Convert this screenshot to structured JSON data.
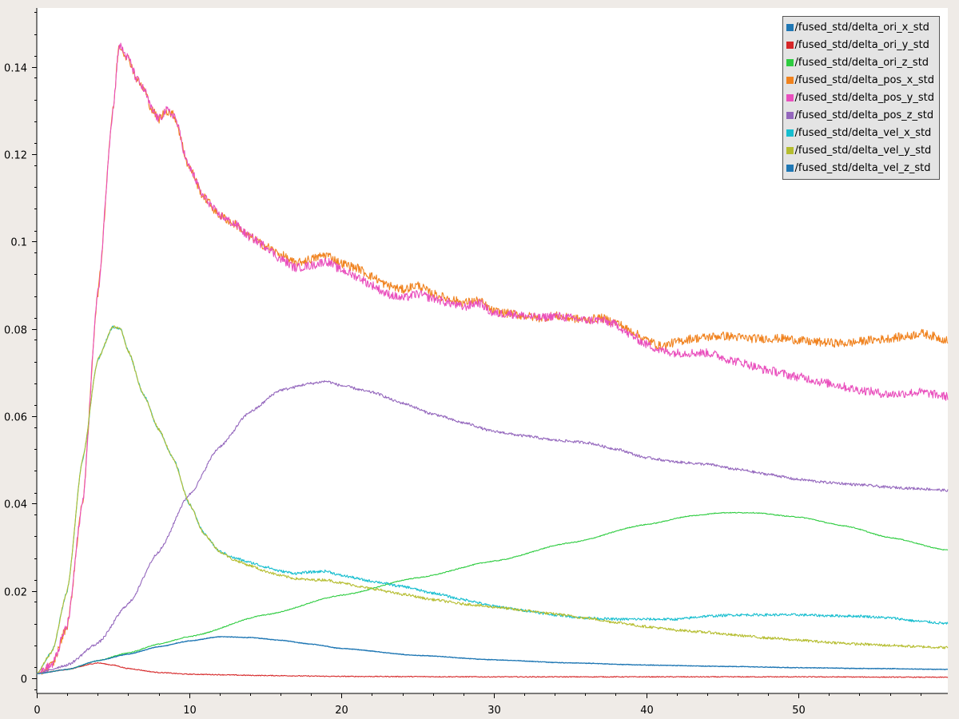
{
  "chart_data": {
    "type": "line",
    "title": "",
    "xlabel": "",
    "ylabel": "",
    "xlim": [
      0,
      59.8
    ],
    "ylim": [
      -0.0035,
      0.1535
    ],
    "x_ticks": [
      0,
      10,
      20,
      30,
      40,
      50
    ],
    "x_tick_labels": [
      "0",
      "10",
      "20",
      "30",
      "40",
      "50"
    ],
    "y_ticks": [
      0,
      0.02,
      0.04,
      0.06,
      0.08,
      0.1,
      0.12,
      0.14
    ],
    "y_tick_labels": [
      "0",
      "0.02",
      "0.04",
      "0.06",
      "0.08",
      "0.1",
      "0.12",
      "0.14"
    ],
    "grid": false,
    "legend_position": "top-right",
    "series": [
      {
        "name": "/fused_std/delta_ori_x_std",
        "color": "#1f77b4",
        "noise": 0.0001,
        "points": [
          [
            0,
            0.001
          ],
          [
            2,
            0.002
          ],
          [
            4,
            0.004
          ],
          [
            6,
            0.0055
          ],
          [
            8,
            0.0072
          ],
          [
            10,
            0.0085
          ],
          [
            12,
            0.0095
          ],
          [
            14,
            0.0093
          ],
          [
            16,
            0.0087
          ],
          [
            18,
            0.0078
          ],
          [
            20,
            0.0068
          ],
          [
            25,
            0.0052
          ],
          [
            30,
            0.0042
          ],
          [
            35,
            0.0035
          ],
          [
            40,
            0.003
          ],
          [
            45,
            0.0027
          ],
          [
            50,
            0.0024
          ],
          [
            55,
            0.0022
          ],
          [
            59.8,
            0.002
          ]
        ]
      },
      {
        "name": "/fused_std/delta_ori_y_std",
        "color": "#d62728",
        "noise": 0.0001,
        "points": [
          [
            0,
            0.001
          ],
          [
            2,
            0.002
          ],
          [
            4,
            0.0035
          ],
          [
            5,
            0.003
          ],
          [
            6,
            0.0022
          ],
          [
            8,
            0.0013
          ],
          [
            10,
            0.0009
          ],
          [
            15,
            0.0006
          ],
          [
            20,
            0.0004
          ],
          [
            30,
            0.0003
          ],
          [
            40,
            0.0003
          ],
          [
            50,
            0.0003
          ],
          [
            59.8,
            0.0002
          ]
        ]
      },
      {
        "name": "/fused_std/delta_ori_z_std",
        "color": "#2ecc40",
        "noise": 0.0001,
        "points": [
          [
            0,
            0.001
          ],
          [
            2,
            0.002
          ],
          [
            4,
            0.004
          ],
          [
            6,
            0.0058
          ],
          [
            8,
            0.0078
          ],
          [
            10,
            0.0095
          ],
          [
            15,
            0.0145
          ],
          [
            20,
            0.019
          ],
          [
            25,
            0.023
          ],
          [
            30,
            0.0268
          ],
          [
            35,
            0.031
          ],
          [
            40,
            0.0352
          ],
          [
            43,
            0.0372
          ],
          [
            45,
            0.0379
          ],
          [
            47,
            0.0379
          ],
          [
            50,
            0.0369
          ],
          [
            53,
            0.0349
          ],
          [
            56,
            0.0322
          ],
          [
            59.8,
            0.0293
          ]
        ]
      },
      {
        "name": "/fused_std/delta_pos_x_std",
        "color": "#f0821e",
        "noise": 0.001,
        "points": [
          [
            0,
            0.001
          ],
          [
            1,
            0.003
          ],
          [
            2,
            0.012
          ],
          [
            3,
            0.04
          ],
          [
            4,
            0.088
          ],
          [
            5,
            0.13
          ],
          [
            5.4,
            0.145
          ],
          [
            6,
            0.142
          ],
          [
            6.6,
            0.137
          ],
          [
            7,
            0.135
          ],
          [
            7.6,
            0.13
          ],
          [
            8,
            0.128
          ],
          [
            8.5,
            0.13
          ],
          [
            9,
            0.129
          ],
          [
            10,
            0.117
          ],
          [
            11,
            0.11
          ],
          [
            12,
            0.106
          ],
          [
            13,
            0.104
          ],
          [
            14,
            0.101
          ],
          [
            15,
            0.099
          ],
          [
            16,
            0.097
          ],
          [
            17,
            0.095
          ],
          [
            18,
            0.096
          ],
          [
            19,
            0.097
          ],
          [
            20,
            0.095
          ],
          [
            21,
            0.094
          ],
          [
            22,
            0.092
          ],
          [
            23,
            0.09
          ],
          [
            24,
            0.089
          ],
          [
            25,
            0.09
          ],
          [
            26,
            0.088
          ],
          [
            27,
            0.087
          ],
          [
            28,
            0.086
          ],
          [
            29,
            0.0865
          ],
          [
            30,
            0.084
          ],
          [
            31,
            0.0835
          ],
          [
            32,
            0.083
          ],
          [
            33,
            0.0825
          ],
          [
            34,
            0.083
          ],
          [
            35,
            0.0825
          ],
          [
            36,
            0.082
          ],
          [
            37,
            0.0825
          ],
          [
            38,
            0.0815
          ],
          [
            39,
            0.0795
          ],
          [
            40,
            0.0775
          ],
          [
            41,
            0.076
          ],
          [
            42,
            0.077
          ],
          [
            43,
            0.0778
          ],
          [
            45,
            0.0784
          ],
          [
            47,
            0.0778
          ],
          [
            49,
            0.0778
          ],
          [
            51,
            0.077
          ],
          [
            53,
            0.0767
          ],
          [
            55,
            0.0775
          ],
          [
            57,
            0.0782
          ],
          [
            58,
            0.079
          ],
          [
            59.8,
            0.0775
          ]
        ]
      },
      {
        "name": "/fused_std/delta_pos_y_std",
        "color": "#e94fbd",
        "noise": 0.001,
        "points": [
          [
            0,
            0.001
          ],
          [
            1,
            0.003
          ],
          [
            2,
            0.012
          ],
          [
            3,
            0.04
          ],
          [
            4,
            0.088
          ],
          [
            5,
            0.13
          ],
          [
            5.4,
            0.145
          ],
          [
            6,
            0.142
          ],
          [
            6.6,
            0.137
          ],
          [
            7,
            0.135
          ],
          [
            7.6,
            0.13
          ],
          [
            8,
            0.128
          ],
          [
            8.5,
            0.13
          ],
          [
            9,
            0.129
          ],
          [
            10,
            0.117
          ],
          [
            11,
            0.11
          ],
          [
            12,
            0.106
          ],
          [
            13,
            0.104
          ],
          [
            14,
            0.101
          ],
          [
            15,
            0.099
          ],
          [
            16,
            0.096
          ],
          [
            17,
            0.094
          ],
          [
            18,
            0.0945
          ],
          [
            19,
            0.0955
          ],
          [
            20,
            0.0935
          ],
          [
            21,
            0.092
          ],
          [
            22,
            0.09
          ],
          [
            23,
            0.088
          ],
          [
            24,
            0.087
          ],
          [
            25,
            0.088
          ],
          [
            26,
            0.087
          ],
          [
            27,
            0.086
          ],
          [
            28,
            0.085
          ],
          [
            29,
            0.086
          ],
          [
            30,
            0.0835
          ],
          [
            31,
            0.0835
          ],
          [
            32,
            0.083
          ],
          [
            33,
            0.0825
          ],
          [
            34,
            0.083
          ],
          [
            35,
            0.0825
          ],
          [
            36,
            0.082
          ],
          [
            37,
            0.082
          ],
          [
            38,
            0.081
          ],
          [
            39,
            0.0785
          ],
          [
            40,
            0.0765
          ],
          [
            41,
            0.075
          ],
          [
            42,
            0.0745
          ],
          [
            44,
            0.0745
          ],
          [
            46,
            0.0725
          ],
          [
            48,
            0.0705
          ],
          [
            50,
            0.069
          ],
          [
            52,
            0.0675
          ],
          [
            54,
            0.066
          ],
          [
            56,
            0.065
          ],
          [
            58,
            0.0655
          ],
          [
            59.8,
            0.0645
          ]
        ]
      },
      {
        "name": "/fused_std/delta_pos_z_std",
        "color": "#9467bd",
        "noise": 0.0003,
        "points": [
          [
            0,
            0.001
          ],
          [
            2,
            0.003
          ],
          [
            4,
            0.008
          ],
          [
            6,
            0.017
          ],
          [
            8,
            0.029
          ],
          [
            10,
            0.042
          ],
          [
            12,
            0.053
          ],
          [
            14,
            0.061
          ],
          [
            16,
            0.066
          ],
          [
            18,
            0.0675
          ],
          [
            19,
            0.068
          ],
          [
            20,
            0.067
          ],
          [
            22,
            0.0655
          ],
          [
            24,
            0.063
          ],
          [
            26,
            0.0605
          ],
          [
            28,
            0.0585
          ],
          [
            30,
            0.0565
          ],
          [
            32,
            0.0555
          ],
          [
            34,
            0.0545
          ],
          [
            36,
            0.054
          ],
          [
            38,
            0.0525
          ],
          [
            40,
            0.0505
          ],
          [
            42,
            0.0495
          ],
          [
            44,
            0.049
          ],
          [
            46,
            0.0478
          ],
          [
            48,
            0.0467
          ],
          [
            50,
            0.0455
          ],
          [
            52,
            0.0448
          ],
          [
            54,
            0.0443
          ],
          [
            56,
            0.0437
          ],
          [
            58,
            0.0434
          ],
          [
            59.8,
            0.043
          ]
        ]
      },
      {
        "name": "/fused_std/delta_vel_x_std",
        "color": "#17becf",
        "noise": 0.0003,
        "points": [
          [
            0,
            0.001
          ],
          [
            1,
            0.006
          ],
          [
            2,
            0.02
          ],
          [
            3,
            0.05
          ],
          [
            4,
            0.073
          ],
          [
            5,
            0.0805
          ],
          [
            5.5,
            0.08
          ],
          [
            6,
            0.075
          ],
          [
            7,
            0.065
          ],
          [
            8,
            0.057
          ],
          [
            9,
            0.05
          ],
          [
            10,
            0.04
          ],
          [
            11,
            0.033
          ],
          [
            12,
            0.029
          ],
          [
            13,
            0.0275
          ],
          [
            14,
            0.0265
          ],
          [
            15,
            0.0255
          ],
          [
            16,
            0.0245
          ],
          [
            17,
            0.024
          ],
          [
            18,
            0.0243
          ],
          [
            19,
            0.0245
          ],
          [
            20,
            0.0235
          ],
          [
            22,
            0.0222
          ],
          [
            24,
            0.021
          ],
          [
            26,
            0.0195
          ],
          [
            28,
            0.018
          ],
          [
            30,
            0.0165
          ],
          [
            32,
            0.0155
          ],
          [
            34,
            0.0145
          ],
          [
            36,
            0.0138
          ],
          [
            38,
            0.0135
          ],
          [
            40,
            0.0135
          ],
          [
            42,
            0.0135
          ],
          [
            44,
            0.0142
          ],
          [
            46,
            0.0145
          ],
          [
            48,
            0.0145
          ],
          [
            50,
            0.0145
          ],
          [
            52,
            0.0143
          ],
          [
            54,
            0.0142
          ],
          [
            56,
            0.0138
          ],
          [
            58,
            0.013
          ],
          [
            59.8,
            0.0125
          ]
        ]
      },
      {
        "name": "/fused_std/delta_vel_y_std",
        "color": "#b5bd2f",
        "noise": 0.0003,
        "points": [
          [
            0,
            0.001
          ],
          [
            1,
            0.006
          ],
          [
            2,
            0.02
          ],
          [
            3,
            0.05
          ],
          [
            4,
            0.073
          ],
          [
            5,
            0.0805
          ],
          [
            5.5,
            0.08
          ],
          [
            6,
            0.075
          ],
          [
            7,
            0.065
          ],
          [
            8,
            0.057
          ],
          [
            9,
            0.05
          ],
          [
            10,
            0.04
          ],
          [
            11,
            0.033
          ],
          [
            12,
            0.029
          ],
          [
            13,
            0.027
          ],
          [
            14,
            0.0258
          ],
          [
            15,
            0.0245
          ],
          [
            16,
            0.0235
          ],
          [
            17,
            0.0228
          ],
          [
            18,
            0.0225
          ],
          [
            19,
            0.0225
          ],
          [
            20,
            0.0218
          ],
          [
            22,
            0.0205
          ],
          [
            24,
            0.0192
          ],
          [
            26,
            0.018
          ],
          [
            28,
            0.017
          ],
          [
            30,
            0.0163
          ],
          [
            32,
            0.0155
          ],
          [
            34,
            0.0147
          ],
          [
            36,
            0.0138
          ],
          [
            38,
            0.0128
          ],
          [
            40,
            0.0118
          ],
          [
            42,
            0.011
          ],
          [
            44,
            0.0105
          ],
          [
            46,
            0.0098
          ],
          [
            48,
            0.0092
          ],
          [
            50,
            0.0087
          ],
          [
            52,
            0.0082
          ],
          [
            54,
            0.0078
          ],
          [
            56,
            0.0075
          ],
          [
            58,
            0.0072
          ],
          [
            59.8,
            0.007
          ]
        ]
      },
      {
        "name": "/fused_std/delta_vel_z_std",
        "color": "#1f77b4",
        "noise": 5e-05,
        "points": [
          [
            0,
            0.001
          ],
          [
            2,
            0.002
          ],
          [
            4,
            0.004
          ],
          [
            6,
            0.0055
          ],
          [
            8,
            0.0072
          ],
          [
            10,
            0.0085
          ],
          [
            12,
            0.0095
          ],
          [
            14,
            0.0093
          ],
          [
            16,
            0.0087
          ],
          [
            18,
            0.0078
          ],
          [
            20,
            0.0068
          ],
          [
            25,
            0.0052
          ],
          [
            30,
            0.0042
          ],
          [
            35,
            0.0035
          ],
          [
            40,
            0.003
          ],
          [
            45,
            0.0027
          ],
          [
            50,
            0.0024
          ],
          [
            55,
            0.0022
          ],
          [
            59.8,
            0.002
          ]
        ]
      }
    ]
  }
}
